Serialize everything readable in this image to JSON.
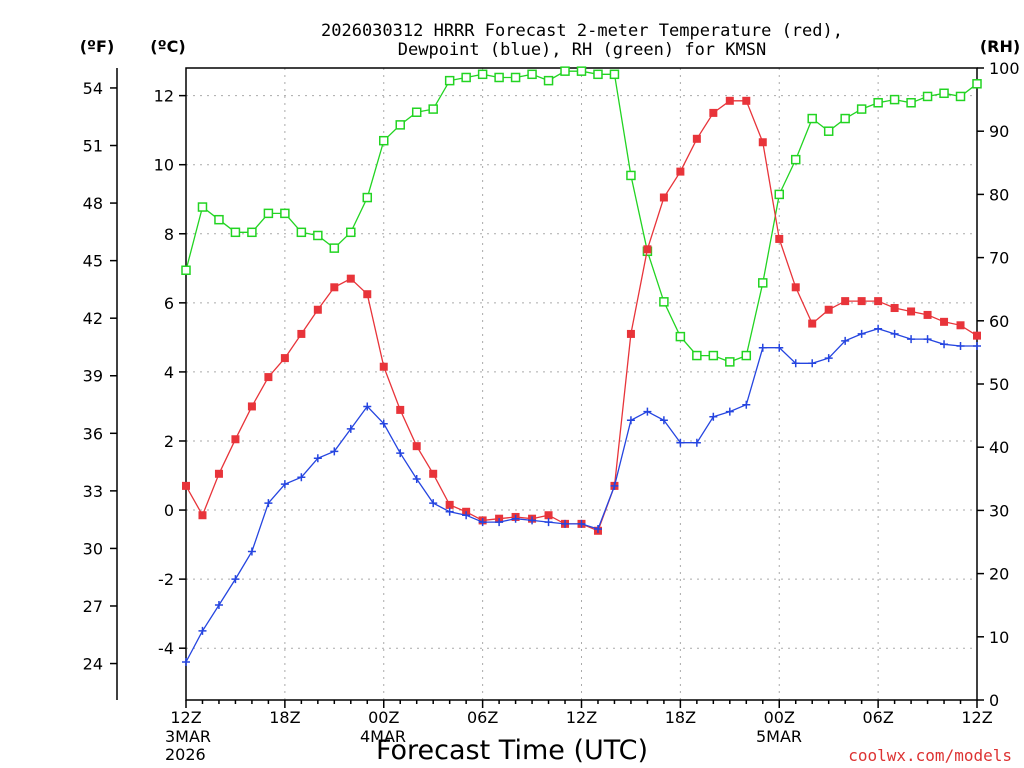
{
  "header": {
    "title_line1": "2026030312 HRRR Forecast 2-meter Temperature (red),",
    "title_line2": "Dewpoint (blue), RH (green) for KMSN",
    "unit_f": "(ºF)",
    "unit_c": "(ºC)",
    "unit_rh": "(RH)"
  },
  "footer": {
    "xlabel": "Forecast Time (UTC)",
    "credit": "coolwx.com/models",
    "date_start_line1": "3MAR",
    "date_start_line2": "2026",
    "date_mid": "4MAR",
    "date_end": "5MAR"
  },
  "colors": {
    "temperature": "#e8343a",
    "dewpoint": "#2545e0",
    "rh": "#22d422",
    "credit": "#dd3333",
    "grid": "#aaaaaa"
  },
  "chart_data": {
    "type": "line",
    "title": "2026030312 HRRR Forecast 2-meter Temperature (red), Dewpoint (blue), RH (green) for KMSN",
    "xlabel": "Forecast Time (UTC)",
    "ylabel_left_f": "(ºF)",
    "ylabel_left_c": "(ºC)",
    "ylabel_right": "(RH)",
    "x_hours": [
      0,
      1,
      2,
      3,
      4,
      5,
      6,
      7,
      8,
      9,
      10,
      11,
      12,
      13,
      14,
      15,
      16,
      17,
      18,
      19,
      20,
      21,
      22,
      23,
      24,
      25,
      26,
      27,
      28,
      29,
      30,
      31,
      32,
      33,
      34,
      35,
      36,
      37,
      38,
      39,
      40,
      41,
      42,
      43,
      44,
      45,
      46,
      47,
      48
    ],
    "x_ticks": [
      {
        "hour": 0,
        "label": "12Z"
      },
      {
        "hour": 6,
        "label": "18Z"
      },
      {
        "hour": 12,
        "label": "00Z"
      },
      {
        "hour": 18,
        "label": "06Z"
      },
      {
        "hour": 24,
        "label": "12Z"
      },
      {
        "hour": 30,
        "label": "18Z"
      },
      {
        "hour": 36,
        "label": "00Z"
      },
      {
        "hour": 42,
        "label": "06Z"
      },
      {
        "hour": 48,
        "label": "12Z"
      }
    ],
    "ylim_c": [
      -5.5,
      12.8
    ],
    "ylim_rh": [
      0,
      100
    ],
    "c_ticks": [
      -4,
      -2,
      0,
      2,
      4,
      6,
      8,
      10,
      12
    ],
    "f_ticks": [
      24,
      27,
      30,
      33,
      36,
      39,
      42,
      45,
      48,
      51,
      54
    ],
    "rh_ticks": [
      0,
      10,
      20,
      30,
      40,
      50,
      60,
      70,
      80,
      90,
      100
    ],
    "grid": true,
    "series": [
      {
        "name": "Temperature",
        "units": "C",
        "marker": "filled-square",
        "values": [
          0.7,
          -0.15,
          1.05,
          2.05,
          3.0,
          3.85,
          4.4,
          5.1,
          5.8,
          6.45,
          6.7,
          6.25,
          4.15,
          2.9,
          1.85,
          1.05,
          0.15,
          -0.05,
          -0.3,
          -0.25,
          -0.2,
          -0.25,
          -0.15,
          -0.4,
          -0.4,
          -0.6,
          0.7,
          5.1,
          7.55,
          9.05,
          9.8,
          10.75,
          11.5,
          11.85,
          11.85,
          10.65,
          7.85,
          6.45,
          5.4,
          5.8,
          6.05,
          6.05,
          6.05,
          5.85,
          5.75,
          5.65,
          5.45,
          5.35,
          5.05
        ]
      },
      {
        "name": "Dewpoint",
        "units": "C",
        "marker": "plus",
        "values": [
          -4.4,
          -3.5,
          -2.75,
          -2.0,
          -1.2,
          0.2,
          0.75,
          0.95,
          1.5,
          1.7,
          2.35,
          3.0,
          2.5,
          1.65,
          0.9,
          0.2,
          -0.05,
          -0.15,
          -0.35,
          -0.35,
          -0.25,
          -0.3,
          -0.35,
          -0.4,
          -0.4,
          -0.55,
          0.7,
          2.6,
          2.85,
          2.6,
          1.95,
          1.95,
          2.7,
          2.85,
          3.05,
          4.7,
          4.7,
          4.25,
          4.25,
          4.4,
          4.9,
          5.1,
          5.25,
          5.1,
          4.95,
          4.95,
          4.8,
          4.75,
          4.75
        ]
      },
      {
        "name": "RH",
        "units": "%",
        "marker": "open-square",
        "values": [
          68,
          78,
          76,
          74,
          74,
          77,
          77,
          74,
          73.5,
          71.5,
          74,
          79.5,
          88.5,
          91,
          93,
          93.5,
          98,
          98.5,
          99,
          98.5,
          98.5,
          99,
          98,
          99.5,
          99.5,
          99,
          99,
          83,
          71,
          63,
          57.5,
          54.5,
          54.5,
          53.5,
          54.5,
          66,
          80,
          85.5,
          92,
          90,
          92,
          93.5,
          94.5,
          95,
          94.5,
          95.5,
          96,
          95.5,
          97.5
        ]
      }
    ]
  }
}
